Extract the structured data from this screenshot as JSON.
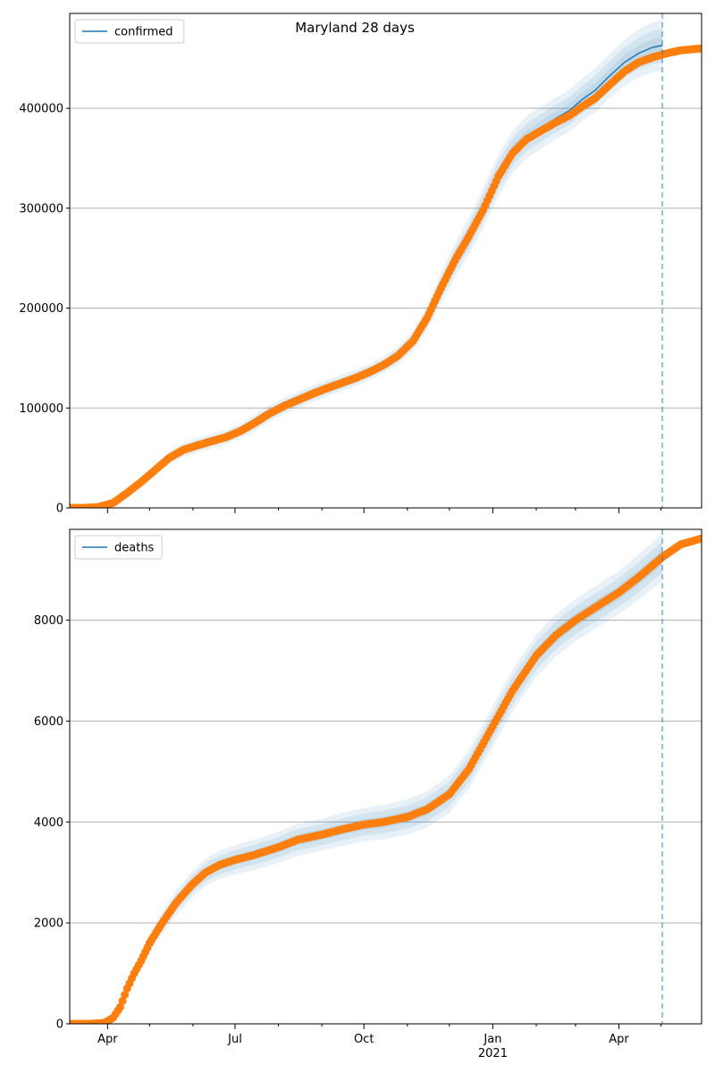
{
  "title": "Maryland 28 days",
  "colors": {
    "forecast_line": "#1f77b4",
    "observed_points": "#ff7f0e",
    "band": "#1f77b4",
    "grid": "#b0b0b0",
    "cutoff_line": "#1f77b4"
  },
  "chart_data": [
    {
      "type": "line",
      "title": "Maryland 28 days",
      "legend": [
        "confirmed"
      ],
      "legend_position": "top-left",
      "grid": "horizontal",
      "xlim": [
        "2020-03-05",
        "2021-05-30"
      ],
      "ylim": [
        0,
        495000
      ],
      "yticks": [
        0,
        100000,
        200000,
        300000,
        400000
      ],
      "ytick_labels": [
        "0",
        "100000",
        "200000",
        "300000",
        "400000"
      ],
      "forecast_cutoff": "2021-05-02",
      "series": [
        {
          "name": "confirmed",
          "kind": "forecast",
          "x": [
            "2020-03-05",
            "2020-03-15",
            "2020-03-25",
            "2020-04-05",
            "2020-04-15",
            "2020-04-25",
            "2020-05-05",
            "2020-05-15",
            "2020-05-25",
            "2020-06-05",
            "2020-06-15",
            "2020-06-25",
            "2020-07-05",
            "2020-07-15",
            "2020-07-25",
            "2020-08-05",
            "2020-08-15",
            "2020-08-25",
            "2020-09-05",
            "2020-09-15",
            "2020-09-25",
            "2020-10-05",
            "2020-10-15",
            "2020-10-25",
            "2020-11-05",
            "2020-11-15",
            "2020-11-25",
            "2020-12-05",
            "2020-12-15",
            "2020-12-25",
            "2021-01-05",
            "2021-01-15",
            "2021-01-25",
            "2021-02-05",
            "2021-02-15",
            "2021-02-25",
            "2021-03-05",
            "2021-03-15",
            "2021-03-25",
            "2021-04-05",
            "2021-04-15",
            "2021-04-25",
            "2021-05-02"
          ],
          "values": [
            0,
            0,
            800,
            5000,
            15000,
            26000,
            38000,
            50000,
            58000,
            63000,
            67000,
            71000,
            77000,
            85000,
            94000,
            102000,
            108000,
            114000,
            120000,
            125000,
            130000,
            136000,
            143000,
            152000,
            167000,
            190000,
            220000,
            248000,
            272000,
            300000,
            333000,
            356000,
            371000,
            381000,
            390000,
            398000,
            408000,
            418000,
            432000,
            446000,
            455000,
            461000,
            463000
          ],
          "band_widths": [
            0,
            0,
            1000,
            2000,
            3000,
            4000,
            5000,
            6000,
            7000,
            7000,
            7000,
            7000,
            7000,
            8000,
            8000,
            8000,
            8000,
            8000,
            8000,
            8000,
            8000,
            8000,
            8000,
            9000,
            10000,
            12000,
            15000,
            17000,
            18000,
            20000,
            21000,
            21000,
            21000,
            21000,
            21000,
            21000,
            21000,
            22000,
            22000,
            23000,
            24000,
            25000,
            26000
          ]
        },
        {
          "name": "observed",
          "kind": "points",
          "x": [
            "2020-03-05",
            "2020-03-15",
            "2020-03-25",
            "2020-04-05",
            "2020-04-15",
            "2020-04-25",
            "2020-05-05",
            "2020-05-15",
            "2020-05-25",
            "2020-06-05",
            "2020-06-15",
            "2020-06-25",
            "2020-07-05",
            "2020-07-15",
            "2020-07-25",
            "2020-08-05",
            "2020-08-15",
            "2020-08-25",
            "2020-09-05",
            "2020-09-15",
            "2020-09-25",
            "2020-10-05",
            "2020-10-15",
            "2020-10-25",
            "2020-11-05",
            "2020-11-15",
            "2020-11-25",
            "2020-12-05",
            "2020-12-15",
            "2020-12-25",
            "2021-01-05",
            "2021-01-15",
            "2021-01-25",
            "2021-02-05",
            "2021-02-15",
            "2021-02-25",
            "2021-03-05",
            "2021-03-15",
            "2021-03-25",
            "2021-04-05",
            "2021-04-15",
            "2021-04-25",
            "2021-05-05",
            "2021-05-15",
            "2021-05-30"
          ],
          "values": [
            0,
            0,
            800,
            5000,
            15000,
            26000,
            38000,
            50000,
            58000,
            63000,
            67000,
            71000,
            77000,
            85000,
            94000,
            102000,
            108000,
            114000,
            120000,
            125000,
            130000,
            136000,
            143000,
            152000,
            167000,
            190000,
            220000,
            248000,
            272000,
            298000,
            332000,
            355000,
            369000,
            378000,
            386000,
            393000,
            401000,
            410000,
            423000,
            437000,
            446000,
            451000,
            455000,
            458000,
            460000
          ]
        }
      ]
    },
    {
      "type": "line",
      "legend": [
        "deaths"
      ],
      "legend_position": "top-left",
      "grid": "horizontal",
      "xlim": [
        "2020-03-05",
        "2021-05-30"
      ],
      "ylim": [
        0,
        9800
      ],
      "yticks": [
        0,
        2000,
        4000,
        6000,
        8000
      ],
      "ytick_labels": [
        "0",
        "2000",
        "4000",
        "6000",
        "8000"
      ],
      "xticks": [
        "2020-04-01",
        "2020-07-01",
        "2020-10-01",
        "2021-01-01",
        "2021-04-01"
      ],
      "xtick_labels": [
        "Apr",
        "Jul",
        "Oct",
        "Jan",
        "Apr"
      ],
      "xtick_year_label": "2021",
      "forecast_cutoff": "2021-05-02",
      "series": [
        {
          "name": "deaths",
          "kind": "forecast",
          "x": [
            "2020-03-05",
            "2020-03-20",
            "2020-03-30",
            "2020-04-05",
            "2020-04-10",
            "2020-04-15",
            "2020-04-20",
            "2020-04-25",
            "2020-05-01",
            "2020-05-10",
            "2020-05-20",
            "2020-05-31",
            "2020-06-10",
            "2020-06-20",
            "2020-07-01",
            "2020-07-15",
            "2020-08-01",
            "2020-08-15",
            "2020-09-01",
            "2020-09-15",
            "2020-10-01",
            "2020-10-15",
            "2020-11-01",
            "2020-11-15",
            "2020-12-01",
            "2020-12-15",
            "2021-01-01",
            "2021-01-15",
            "2021-02-01",
            "2021-02-15",
            "2021-03-01",
            "2021-03-15",
            "2021-04-01",
            "2021-04-15",
            "2021-05-02"
          ],
          "values": [
            0,
            0,
            20,
            120,
            330,
            700,
            1000,
            1250,
            1600,
            2000,
            2400,
            2750,
            3000,
            3150,
            3250,
            3350,
            3500,
            3650,
            3750,
            3850,
            3950,
            4000,
            4100,
            4250,
            4550,
            5050,
            5900,
            6600,
            7300,
            7700,
            8000,
            8250,
            8550,
            8850,
            9250
          ],
          "band_widths": [
            0,
            0,
            10,
            30,
            60,
            100,
            130,
            160,
            190,
            220,
            250,
            260,
            270,
            280,
            290,
            300,
            310,
            320,
            320,
            330,
            330,
            340,
            350,
            360,
            370,
            380,
            400,
            420,
            420,
            420,
            420,
            420,
            430,
            450,
            470
          ]
        },
        {
          "name": "observed",
          "kind": "points",
          "x": [
            "2020-03-05",
            "2020-03-20",
            "2020-03-30",
            "2020-04-05",
            "2020-04-10",
            "2020-04-15",
            "2020-04-20",
            "2020-04-25",
            "2020-05-01",
            "2020-05-10",
            "2020-05-20",
            "2020-05-31",
            "2020-06-10",
            "2020-06-20",
            "2020-07-01",
            "2020-07-15",
            "2020-08-01",
            "2020-08-15",
            "2020-09-01",
            "2020-09-15",
            "2020-10-01",
            "2020-10-15",
            "2020-11-01",
            "2020-11-15",
            "2020-12-01",
            "2020-12-15",
            "2021-01-01",
            "2021-01-15",
            "2021-02-01",
            "2021-02-15",
            "2021-03-01",
            "2021-03-15",
            "2021-04-01",
            "2021-04-15",
            "2021-05-02",
            "2021-05-15",
            "2021-05-30"
          ],
          "values": [
            0,
            0,
            20,
            120,
            330,
            700,
            1000,
            1250,
            1600,
            2000,
            2400,
            2750,
            3000,
            3150,
            3250,
            3350,
            3500,
            3650,
            3750,
            3850,
            3950,
            4000,
            4100,
            4250,
            4550,
            5050,
            5900,
            6600,
            7300,
            7700,
            8000,
            8250,
            8550,
            8850,
            9250,
            9500,
            9620
          ]
        }
      ]
    }
  ]
}
